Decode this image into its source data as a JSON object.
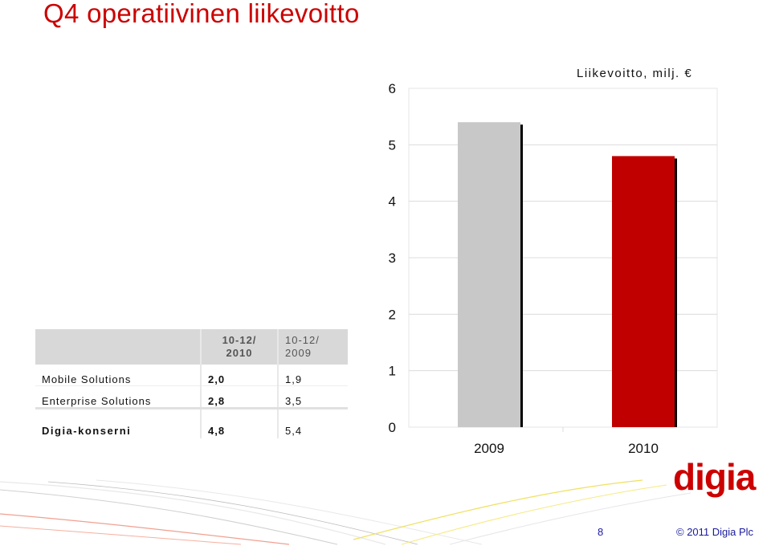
{
  "slide": {
    "title": "Q4 operatiivinen liikevoitto",
    "page_number": "8",
    "copyright": "© 2011 Digia Plc",
    "logo_text": "digia",
    "colors": {
      "accent": "#cc0000",
      "bar_2009": "#c8c8c8",
      "bar_2010": "#c00000",
      "footer_text": "#1a1aa0"
    }
  },
  "chart_data": {
    "type": "bar",
    "categories": [
      "2009",
      "2010"
    ],
    "values": [
      5.4,
      4.8
    ],
    "title": "",
    "unit_label": "Liikevoitto, milj. €",
    "xlabel": "",
    "ylabel": "",
    "ylim": [
      0,
      6
    ],
    "yticks": [
      "0",
      "1",
      "2",
      "3",
      "4",
      "5",
      "6"
    ],
    "grid": true,
    "colors": [
      "#c8c8c8",
      "#c00000"
    ]
  },
  "table": {
    "headers": [
      "",
      "10-12/ 2010",
      "10-12/ 2009"
    ],
    "rows": [
      {
        "name": "Mobile Solutions",
        "v2010": "2,0",
        "v2009": "1,9"
      },
      {
        "name": "Enterprise Solutions",
        "v2010": "2,8",
        "v2009": "3,5"
      }
    ],
    "total": {
      "name": "Digia-konserni",
      "v2010": "4,8",
      "v2009": "5,4"
    }
  }
}
